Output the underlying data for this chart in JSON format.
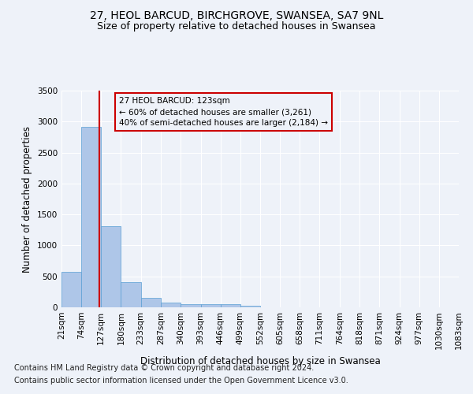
{
  "title1": "27, HEOL BARCUD, BIRCHGROVE, SWANSEA, SA7 9NL",
  "title2": "Size of property relative to detached houses in Swansea",
  "xlabel": "Distribution of detached houses by size in Swansea",
  "ylabel": "Number of detached properties",
  "footnote1": "Contains HM Land Registry data © Crown copyright and database right 2024.",
  "footnote2": "Contains public sector information licensed under the Open Government Licence v3.0.",
  "property_size": 123,
  "annotation_line1": "27 HEOL BARCUD: 123sqm",
  "annotation_line2": "← 60% of detached houses are smaller (3,261)",
  "annotation_line3": "40% of semi-detached houses are larger (2,184) →",
  "bin_edges": [
    21,
    74,
    127,
    180,
    233,
    287,
    340,
    393,
    446,
    499,
    552,
    605,
    658,
    711,
    764,
    818,
    871,
    924,
    977,
    1030,
    1083
  ],
  "bar_heights": [
    575,
    2910,
    1315,
    410,
    155,
    80,
    55,
    50,
    45,
    30,
    5,
    3,
    2,
    2,
    1,
    1,
    1,
    1,
    1,
    1
  ],
  "bar_color": "#aec6e8",
  "bar_edge_color": "#5a9fd4",
  "line_color": "#cc0000",
  "ylim": [
    0,
    3500
  ],
  "yticks": [
    0,
    500,
    1000,
    1500,
    2000,
    2500,
    3000,
    3500
  ],
  "background_color": "#eef2f9",
  "grid_color": "#ffffff",
  "annotation_box_color": "#cc0000",
  "title1_fontsize": 10,
  "title2_fontsize": 9,
  "axis_label_fontsize": 8.5,
  "tick_fontsize": 7.5,
  "footnote_fontsize": 7
}
